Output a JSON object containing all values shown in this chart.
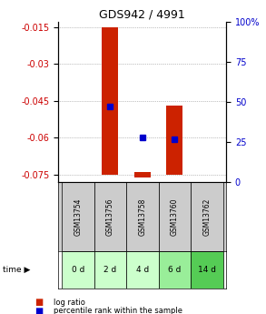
{
  "title": "GDS942 / 4991",
  "samples": [
    "GSM13754",
    "GSM13756",
    "GSM13758",
    "GSM13760",
    "GSM13762"
  ],
  "time_labels": [
    "0 d",
    "2 d",
    "4 d",
    "6 d",
    "14 d"
  ],
  "ylim_left": [
    -0.078,
    -0.013
  ],
  "ylim_right": [
    0,
    100
  ],
  "yticks_left": [
    -0.075,
    -0.06,
    -0.045,
    -0.03,
    -0.015
  ],
  "yticks_right": [
    0,
    25,
    50,
    75,
    100
  ],
  "log_ratio_top": [
    null,
    -0.015,
    -0.074,
    -0.047,
    null
  ],
  "log_ratio_bottom": [
    null,
    -0.075,
    -0.076,
    -0.075,
    null
  ],
  "percentile": [
    null,
    47,
    28,
    27,
    null
  ],
  "bar_color": "#cc2200",
  "dot_color": "#0000cc",
  "grid_color": "#888888",
  "sample_bg": "#cccccc",
  "time_bg_colors": [
    "#ccffcc",
    "#ccffcc",
    "#ccffcc",
    "#99ee99",
    "#55cc55"
  ],
  "left_label_color": "#cc0000",
  "right_label_color": "#0000cc",
  "bar_width": 0.5
}
